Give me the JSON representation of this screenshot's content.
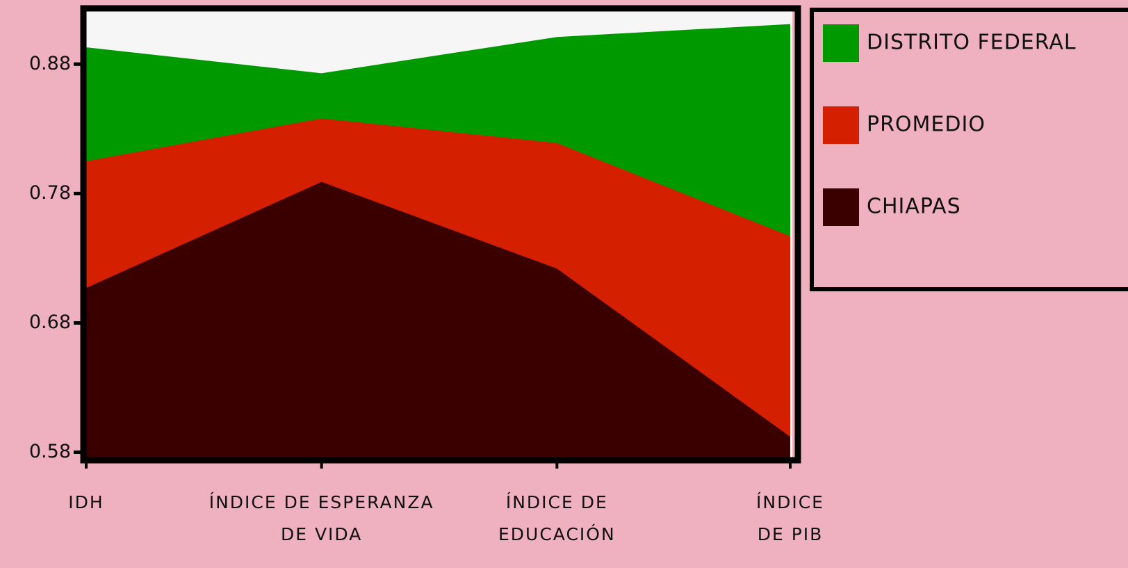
{
  "chart_data": {
    "type": "area",
    "categories": [
      "IDH",
      "ÍNDICE DE ESPERANZA DE VIDA",
      "ÍNDICE DE EDUCACIÓN",
      "ÍNDICE DE PIB"
    ],
    "series": [
      {
        "name": "DISTRITO FEDERAL",
        "color": "#009a00",
        "values": [
          0.893,
          0.873,
          0.901,
          0.911
        ]
      },
      {
        "name": "PROMEDIO",
        "color": "#d42000",
        "values": [
          0.805,
          0.838,
          0.819,
          0.747
        ]
      },
      {
        "name": "CHIAPAS",
        "color": "#3a0000",
        "values": [
          0.707,
          0.789,
          0.722,
          0.592
        ]
      }
    ],
    "ylim": [
      0.576,
      0.921
    ],
    "yticks": [
      0.58,
      0.68,
      0.78,
      0.88
    ],
    "legend": "upper right"
  }
}
